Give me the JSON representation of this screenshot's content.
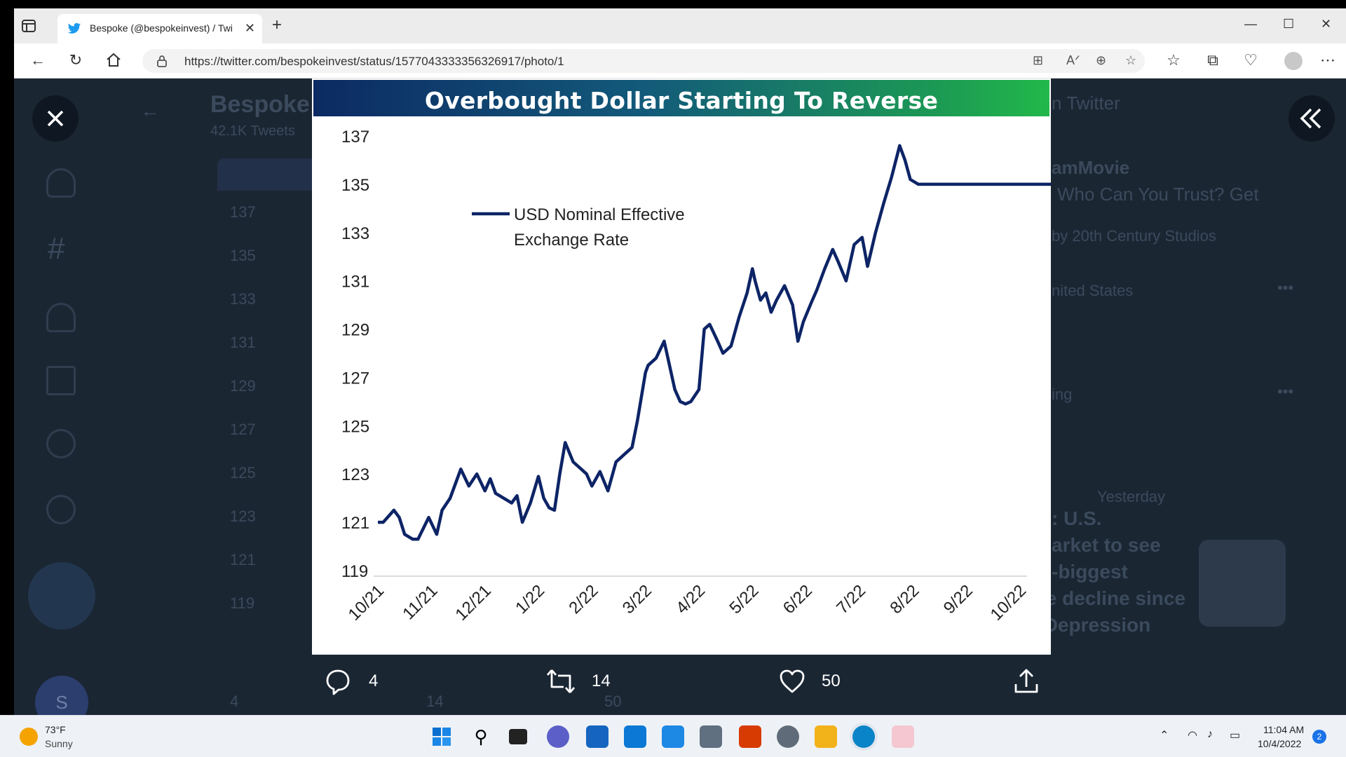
{
  "browser": {
    "tab_title": "Bespoke (@bespokeinvest) / Twi",
    "url": "https://twitter.com/bespokeinvest/status/1577043333356326917/photo/1"
  },
  "background": {
    "profile_name": "Bespoke",
    "tweets_count": "42.1K Tweets",
    "trending_header": "n Twitter",
    "trend_title": "amMovie",
    "trend_subtitle": "Who Can You Trust? Get",
    "trend_promoted": "by 20th Century Studios",
    "trend_location": "nited States",
    "trend_ing": "ing",
    "news_time": "Yesterday",
    "news_line1": ": U.S.",
    "news_line2": "arket to see",
    "news_line3": "-biggest",
    "news_line4": "home price decline since",
    "news_line5": "the Great Depression",
    "bg_ticks": [
      "137",
      "135",
      "133",
      "131",
      "129",
      "127",
      "125",
      "123",
      "121",
      "119"
    ],
    "bg_reply": "4",
    "bg_retweet": "14",
    "bg_like": "50",
    "avatar_letter": "S"
  },
  "actions": {
    "reply_count": "4",
    "retweet_count": "14",
    "like_count": "50"
  },
  "chart_data": {
    "type": "line",
    "title": "Overbought Dollar Starting To Reverse",
    "xlabel": "",
    "ylabel": "",
    "ylim": [
      119,
      137
    ],
    "yticks": [
      119,
      121,
      123,
      125,
      127,
      129,
      131,
      133,
      135,
      137
    ],
    "xticks": [
      "10/21",
      "11/21",
      "12/21",
      "1/22",
      "2/22",
      "3/22",
      "4/22",
      "5/22",
      "6/22",
      "7/22",
      "8/22",
      "9/22",
      "10/22"
    ],
    "legend": "top-left",
    "series": [
      {
        "name": "USD Nominal Effective Exchange Rate",
        "color": "#0d2466",
        "x": [
          0.0,
          0.1,
          0.3,
          0.4,
          0.5,
          0.65,
          0.75,
          0.95,
          1.1,
          1.2,
          1.35,
          1.55,
          1.7,
          1.85,
          2.0,
          2.1,
          2.2,
          2.35,
          2.5,
          2.6,
          2.7,
          2.85,
          3.0,
          3.1,
          3.2,
          3.3,
          3.4,
          3.5,
          3.65,
          3.8,
          3.9,
          4.0,
          4.15,
          4.3,
          4.45,
          4.6,
          4.75,
          4.85,
          5.0,
          5.05,
          5.2,
          5.35,
          5.45,
          5.55,
          5.65,
          5.75,
          5.85,
          6.0,
          6.1,
          6.2,
          6.35,
          6.45,
          6.6,
          6.75,
          6.9,
          7.0,
          7.05,
          7.15,
          7.25,
          7.35,
          7.45,
          7.6,
          7.75,
          7.85,
          7.95,
          8.1,
          8.2,
          8.35,
          8.5,
          8.6,
          8.75,
          8.9,
          9.05,
          9.15,
          9.3,
          9.45,
          9.6,
          9.75,
          9.85,
          9.95,
          10.1,
          10.25,
          10.4,
          10.5,
          10.6,
          10.75,
          10.85,
          11.0,
          11.15,
          11.3,
          11.45,
          11.6,
          11.75,
          11.9,
          12.05,
          12.2,
          12.3,
          12.45,
          12.6,
          12.7
        ],
        "values": [
          121.0,
          121.0,
          121.5,
          121.2,
          120.5,
          120.3,
          120.3,
          121.2,
          120.5,
          121.5,
          122.0,
          123.2,
          122.5,
          123.0,
          122.3,
          122.8,
          122.2,
          122.0,
          121.8,
          122.1,
          121.0,
          121.8,
          122.9,
          122.0,
          121.6,
          121.5,
          123.0,
          124.3,
          123.5,
          123.2,
          123.0,
          122.5,
          123.1,
          122.3,
          123.5,
          123.8,
          124.1,
          125.2,
          127.2,
          127.5,
          127.8,
          128.5,
          127.5,
          126.5,
          126.0,
          125.9,
          126.0,
          126.5,
          129.0,
          129.2,
          128.5,
          128.0,
          128.3,
          129.5,
          130.5,
          131.5,
          131.0,
          130.2,
          130.5,
          129.7,
          130.2,
          130.8,
          130.0,
          128.5,
          129.3,
          130.1,
          130.6,
          131.5,
          132.3,
          131.8,
          131.0,
          132.5,
          132.8,
          131.6,
          133.0,
          134.2,
          135.3,
          136.6,
          136.0,
          135.2,
          135.0,
          135.0,
          135.0,
          135.0,
          135.0,
          135.0,
          135.0,
          135.0,
          135.0,
          135.0,
          135.0,
          135.0,
          135.0,
          135.0,
          135.0,
          135.0,
          135.0,
          135.0,
          135.0,
          135.0
        ]
      }
    ]
  }
}
